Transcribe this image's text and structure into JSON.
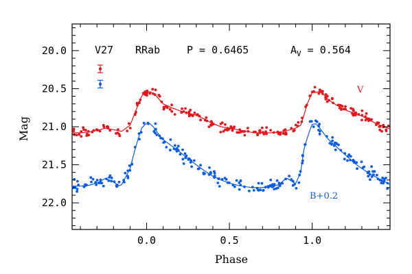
{
  "chart_data": {
    "type": "scatter",
    "annotations": {
      "star": "V27",
      "variable_type": "RRab",
      "period_text": "P = 0.6465",
      "amp_base": "A",
      "amp_sub": "V",
      "amp_rest": " = 0.564"
    },
    "xlabel": "Phase",
    "ylabel": "Mag",
    "xlim": [
      -0.45,
      1.47
    ],
    "ylim": [
      22.35,
      19.65
    ],
    "y_inverted": true,
    "xticks": [
      0.0,
      0.5,
      1.0
    ],
    "xtick_labels": [
      "0.0",
      "0.5",
      "1.0"
    ],
    "yticks": [
      20.0,
      20.5,
      21.0,
      21.5,
      22.0
    ],
    "ytick_labels": [
      "20.0",
      "20.5",
      "21.0",
      "21.5",
      "22.0"
    ],
    "colors": {
      "V": "#e8141b",
      "B": "#0b5ce6"
    },
    "series": [
      {
        "name": "V",
        "label_text": "V",
        "color": "#e8141b",
        "fit_x": [
          -0.45,
          -0.4,
          -0.35,
          -0.3,
          -0.25,
          -0.2,
          -0.15,
          -0.1,
          -0.07,
          -0.05,
          -0.03,
          -0.01,
          0.0,
          0.02,
          0.04,
          0.06,
          0.08,
          0.1,
          0.15,
          0.2,
          0.25,
          0.3,
          0.35,
          0.4,
          0.45,
          0.5,
          0.55,
          0.6,
          0.65,
          0.7,
          0.75,
          0.8,
          0.85,
          0.9,
          0.93,
          0.95,
          0.97,
          0.99,
          1.0,
          1.02,
          1.04,
          1.06,
          1.08,
          1.1,
          1.15,
          1.2,
          1.25,
          1.3,
          1.35,
          1.4,
          1.47
        ],
        "fit_y": [
          21.08,
          21.08,
          21.07,
          21.05,
          21.02,
          21.04,
          21.06,
          20.98,
          20.82,
          20.7,
          20.6,
          20.55,
          20.55,
          20.54,
          20.56,
          20.6,
          20.65,
          20.7,
          20.75,
          20.79,
          20.82,
          20.85,
          20.9,
          20.96,
          21.0,
          21.02,
          21.04,
          21.06,
          21.08,
          21.08,
          21.08,
          21.07,
          21.05,
          21.02,
          20.98,
          20.85,
          20.7,
          20.6,
          20.55,
          20.55,
          20.54,
          20.56,
          20.6,
          20.65,
          20.72,
          20.78,
          20.82,
          20.86,
          20.92,
          20.97,
          21.03
        ]
      },
      {
        "name": "B+0.2",
        "label_text": "B+0.2",
        "color": "#0b5ce6",
        "fit_x": [
          -0.45,
          -0.4,
          -0.35,
          -0.3,
          -0.25,
          -0.2,
          -0.17,
          -0.15,
          -0.1,
          -0.07,
          -0.05,
          -0.03,
          -0.01,
          0.0,
          0.02,
          0.04,
          0.06,
          0.08,
          0.1,
          0.15,
          0.2,
          0.25,
          0.3,
          0.35,
          0.4,
          0.45,
          0.5,
          0.55,
          0.6,
          0.65,
          0.7,
          0.75,
          0.8,
          0.83,
          0.85,
          0.9,
          0.93,
          0.95,
          0.97,
          0.99,
          1.0,
          1.02,
          1.04,
          1.06,
          1.08,
          1.1,
          1.15,
          1.2,
          1.25,
          1.3,
          1.35,
          1.4,
          1.47
        ],
        "fit_y": [
          21.78,
          21.78,
          21.77,
          21.74,
          21.68,
          21.72,
          21.78,
          21.76,
          21.55,
          21.3,
          21.15,
          21.02,
          20.97,
          20.96,
          20.96,
          21.0,
          21.06,
          21.12,
          21.17,
          21.25,
          21.33,
          21.42,
          21.5,
          21.58,
          21.65,
          21.7,
          21.74,
          21.77,
          21.79,
          21.8,
          21.8,
          21.79,
          21.76,
          21.7,
          21.68,
          21.75,
          21.6,
          21.3,
          21.15,
          21.02,
          20.97,
          20.96,
          21.0,
          21.06,
          21.12,
          21.17,
          21.27,
          21.37,
          21.47,
          21.55,
          21.62,
          21.68,
          21.76
        ]
      }
    ],
    "error_bars": [
      {
        "series": "V",
        "x": -0.28,
        "y": 20.24,
        "err": 0.05
      },
      {
        "series": "B+0.2",
        "x": -0.28,
        "y": 20.44,
        "err": 0.05
      }
    ]
  }
}
